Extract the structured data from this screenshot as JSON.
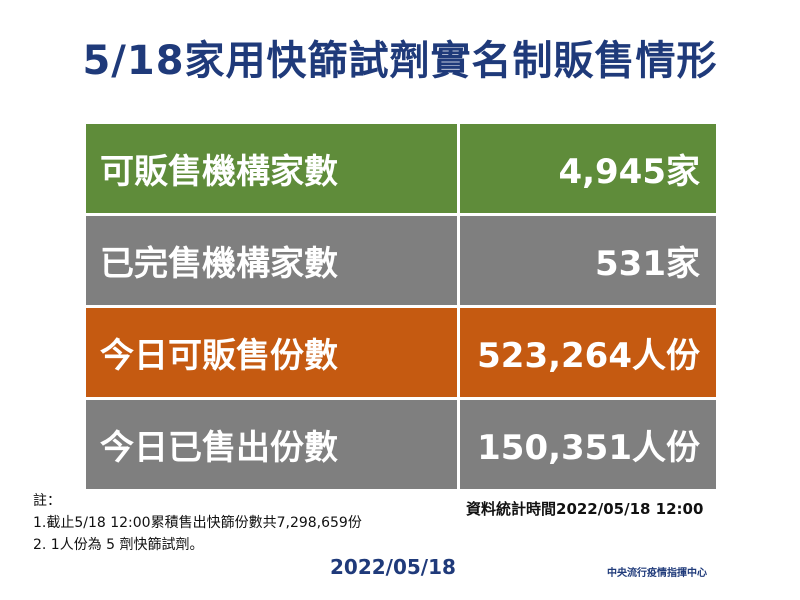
{
  "title": "5/18家用快篩試劑實名制販售情形",
  "rows": [
    {
      "label": "可販售機構家數",
      "value": "4,945家",
      "color": "#5f8c3a"
    },
    {
      "label": "已完售機構家數",
      "value": "531家",
      "color": "#7f7f7f"
    },
    {
      "label": "今日可販售份數",
      "value": "523,264人份",
      "color": "#c55a11"
    },
    {
      "label": "今日已售出份數",
      "value": "150,351人份",
      "color": "#7f7f7f"
    }
  ],
  "notes": {
    "heading": "註：",
    "line1": "1.截止5/18 12:00累積售出快篩份數共7,298,659份",
    "line2": "2. 1人份為 5 劑快篩試劑。"
  },
  "stats_time": "資料統計時間2022/05/18  12:00",
  "date": "2022/05/18",
  "source": "中央流行疫情指揮中心"
}
